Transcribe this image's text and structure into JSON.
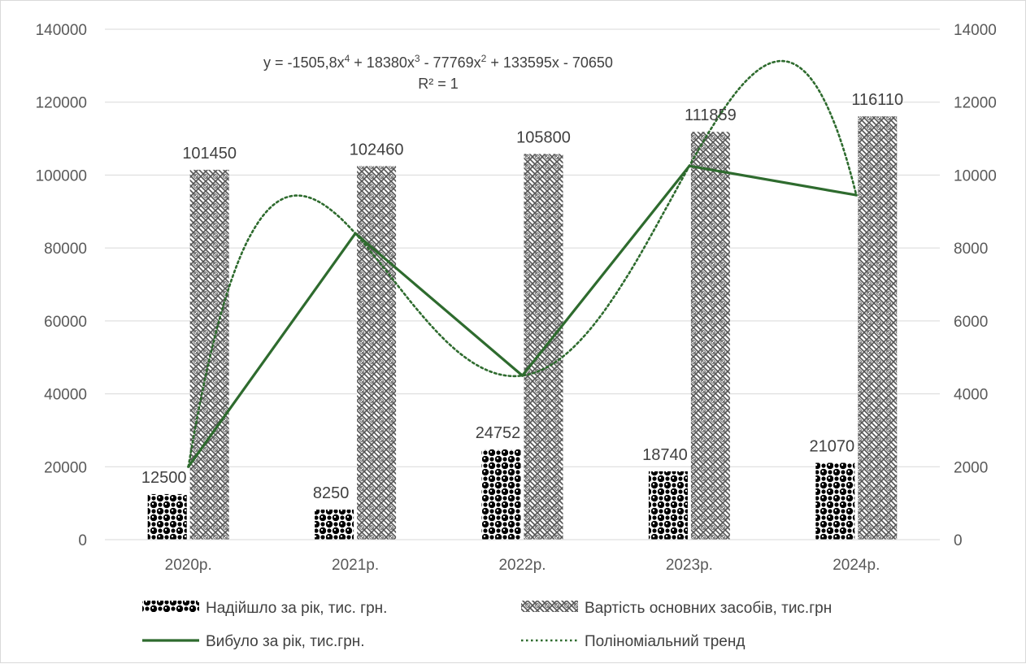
{
  "chart_data": {
    "type": "bar",
    "categories": [
      "2020р.",
      "2021р.",
      "2022р.",
      "2023р.",
      "2024р."
    ],
    "series": [
      {
        "name": "Надійшло за рік, тис. грн.",
        "type": "bar",
        "axis": "left",
        "values": [
          12500,
          8250,
          24752,
          18740,
          21070
        ],
        "labels": [
          "12500",
          "8250",
          "24752",
          "18740",
          "21070"
        ]
      },
      {
        "name": "Вартість основних засобів, тис.грн",
        "type": "bar",
        "axis": "left",
        "values": [
          101450,
          102460,
          105800,
          111859,
          116110
        ],
        "labels": [
          "101450",
          "102460",
          "105800",
          "111859",
          "116110"
        ]
      },
      {
        "name": "Вибуло за рік, тис.грн.",
        "type": "line",
        "axis": "right",
        "values": [
          2000,
          8400,
          4500,
          10250,
          9450
        ],
        "color": "#2e6b2e"
      },
      {
        "name": "Поліноміальний тренд",
        "type": "trendline",
        "axis": "right",
        "color": "#2e6b2e"
      }
    ],
    "ylim_left": [
      0,
      140000
    ],
    "ylim_right": [
      0,
      14000
    ],
    "yticks_left": [
      "0",
      "20000",
      "40000",
      "60000",
      "80000",
      "100000",
      "120000",
      "140000"
    ],
    "yticks_right": [
      "0",
      "2000",
      "4000",
      "6000",
      "8000",
      "10000",
      "12000",
      "14000"
    ],
    "grid": true,
    "legend_position": "bottom",
    "equation": {
      "line1_parts": [
        "y = -1505,8x",
        "4",
        " + 18380x",
        "3",
        " - 77769x",
        "2",
        " + 133595x - 70650"
      ],
      "line2": "R² = 1"
    }
  }
}
